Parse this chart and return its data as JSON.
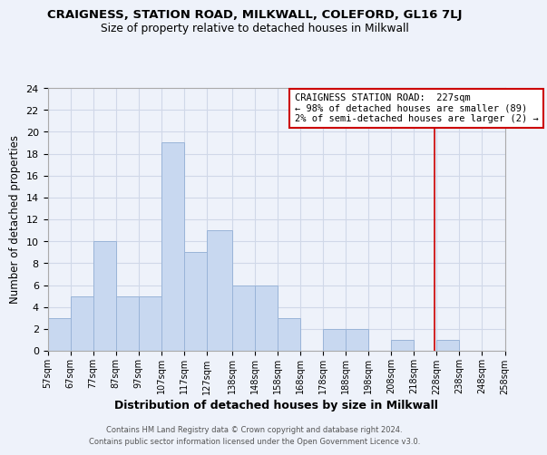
{
  "title": "CRAIGNESS, STATION ROAD, MILKWALL, COLEFORD, GL16 7LJ",
  "subtitle": "Size of property relative to detached houses in Milkwall",
  "xlabel": "Distribution of detached houses by size in Milkwall",
  "ylabel": "Number of detached properties",
  "bar_edges": [
    57,
    67,
    77,
    87,
    97,
    107,
    117,
    127,
    138,
    148,
    158,
    168,
    178,
    188,
    198,
    208,
    218,
    228,
    238,
    248,
    258
  ],
  "bar_heights": [
    3,
    5,
    10,
    5,
    5,
    19,
    9,
    11,
    6,
    6,
    3,
    0,
    2,
    2,
    0,
    1,
    0,
    1,
    0,
    0
  ],
  "bar_color": "#c8d8f0",
  "bar_edgecolor": "#9ab4d8",
  "ylim": [
    0,
    24
  ],
  "yticks": [
    0,
    2,
    4,
    6,
    8,
    10,
    12,
    14,
    16,
    18,
    20,
    22,
    24
  ],
  "xtick_labels": [
    "57sqm",
    "67sqm",
    "77sqm",
    "87sqm",
    "97sqm",
    "107sqm",
    "117sqm",
    "127sqm",
    "138sqm",
    "148sqm",
    "158sqm",
    "168sqm",
    "178sqm",
    "188sqm",
    "198sqm",
    "208sqm",
    "218sqm",
    "228sqm",
    "238sqm",
    "248sqm",
    "258sqm"
  ],
  "vline_x": 227,
  "vline_color": "#cc0000",
  "annotation_title": "CRAIGNESS STATION ROAD:  227sqm",
  "annotation_line1": "← 98% of detached houses are smaller (89)",
  "annotation_line2": "2% of semi-detached houses are larger (2) →",
  "footer1": "Contains HM Land Registry data © Crown copyright and database right 2024.",
  "footer2": "Contains public sector information licensed under the Open Government Licence v3.0.",
  "grid_color": "#d0d8e8",
  "background_color": "#eef2fa"
}
